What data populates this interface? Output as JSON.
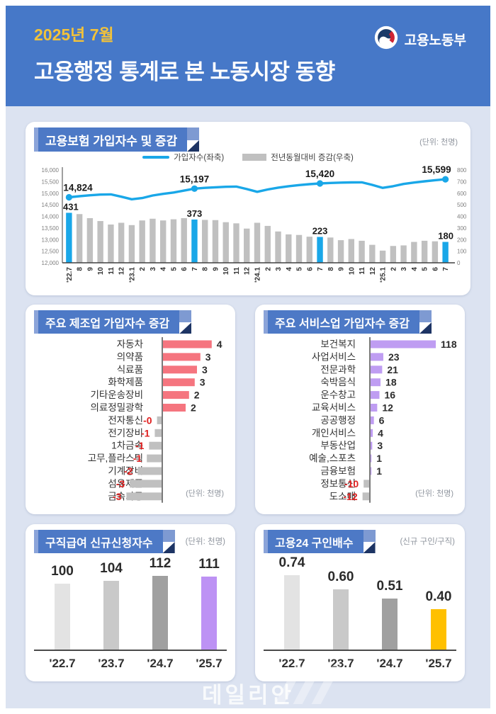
{
  "header": {
    "period": "2025년 7월",
    "title": "고용행정 통계로 본 노동시장 동향",
    "ministry": "고용노동부",
    "bg_color": "#4678c8",
    "period_color": "#f2c23a"
  },
  "watermark": {
    "text": "데일리안"
  },
  "colors": {
    "highlight_blue": "#19a7e8",
    "bar_gray": "#c0c0c0",
    "manufacturing_positive": "#f5757f",
    "services_positive": "#bf9df2",
    "negative_label_red": "#e02020",
    "claims_final_purple": "#bd92f4",
    "ratio_final_yellow": "#ffc000"
  },
  "chart_data": [
    {
      "id": "insured",
      "type": "combo",
      "title": "고용보험 가입자수 및 증감",
      "unit": "(단위: 천명)",
      "x": [
        "'22.7",
        "8",
        "9",
        "10",
        "11",
        "12",
        "'23.1",
        "2",
        "3",
        "4",
        "5",
        "6",
        "7",
        "8",
        "9",
        "10",
        "11",
        "12",
        "'24.1",
        "2",
        "3",
        "4",
        "5",
        "6",
        "7",
        "8",
        "9",
        "10",
        "11",
        "12",
        "'25.1",
        "2",
        "3",
        "4",
        "5",
        "6",
        "7"
      ],
      "left_axis": {
        "min": 12000,
        "max": 16000,
        "ticks": [
          "16,000",
          "15,500",
          "15,000",
          "14,500",
          "14,000",
          "13,500",
          "13,000",
          "12,500",
          "12,000"
        ]
      },
      "right_axis": {
        "min": 0,
        "max": 800,
        "ticks": [
          "800",
          "700",
          "600",
          "500",
          "400",
          "300",
          "200",
          "100",
          "0"
        ]
      },
      "series": [
        {
          "name": "가입자수(좌축)",
          "type": "line",
          "axis": "left",
          "color": "#19a7e8",
          "values": [
            14824,
            14870,
            14910,
            14940,
            14950,
            14850,
            14740,
            14790,
            14900,
            14970,
            15030,
            15110,
            15197,
            15230,
            15255,
            15275,
            15285,
            15180,
            15060,
            15160,
            15240,
            15300,
            15350,
            15390,
            15420,
            15440,
            15455,
            15465,
            15470,
            15360,
            15230,
            15300,
            15400,
            15460,
            15510,
            15560,
            15599
          ],
          "labeled_points": [
            {
              "index": 0,
              "label": "14,824"
            },
            {
              "index": 12,
              "label": "15,197"
            },
            {
              "index": 24,
              "label": "15,420"
            },
            {
              "index": 36,
              "label": "15,599"
            }
          ]
        },
        {
          "name": "전년동월대비 증감(우축)",
          "type": "bar",
          "axis": "right",
          "color": "#c0c0c0",
          "highlight_color": "#19a7e8",
          "highlight_indices": [
            0,
            12,
            24,
            36
          ],
          "values": [
            431,
            420,
            385,
            360,
            330,
            345,
            325,
            365,
            380,
            365,
            375,
            385,
            373,
            370,
            368,
            350,
            340,
            295,
            345,
            318,
            270,
            245,
            240,
            225,
            223,
            218,
            195,
            205,
            190,
            155,
            105,
            145,
            150,
            180,
            190,
            185,
            180
          ],
          "labeled_points": [
            {
              "index": 0,
              "label": "431"
            },
            {
              "index": 12,
              "label": "373"
            },
            {
              "index": 24,
              "label": "223"
            },
            {
              "index": 36,
              "label": "180"
            }
          ]
        }
      ]
    },
    {
      "id": "manufacturing",
      "type": "bar-horizontal",
      "title": "주요 제조업 가입자수 증감",
      "unit": "(단위: 천명)",
      "categories": [
        "자동차",
        "의약품",
        "식료품",
        "화학제품",
        "기타운송장비",
        "의료정밀광학",
        "전자통신",
        "전기장비",
        "1차금속",
        "고무,플라스틱",
        "기계장비",
        "섬유제품",
        "금속가공"
      ],
      "labels": [
        "4",
        "3",
        "3",
        "3",
        "2",
        "2",
        "-0",
        "-1",
        "-1",
        "-1",
        "-2",
        "-3",
        "-3"
      ],
      "values": [
        4.3,
        3.3,
        3.0,
        2.8,
        2.3,
        2.0,
        -0.4,
        -0.6,
        -1.1,
        -1.3,
        -2.1,
        -2.8,
        -3.1
      ],
      "positive_color": "#f5757f",
      "negative_color": "#c0c0c0",
      "negative_label_color": "#e02020"
    },
    {
      "id": "services",
      "type": "bar-horizontal",
      "title": "주요 서비스업 가입자수 증감",
      "unit": "(단위: 천명)",
      "categories": [
        "보건복지",
        "사업서비스",
        "전문과학",
        "숙박음식",
        "운수창고",
        "교육서비스",
        "공공행정",
        "개인서비스",
        "부동산업",
        "예술,스포츠",
        "금융보험",
        "정보통신",
        "도소매"
      ],
      "labels": [
        "118",
        "23",
        "21",
        "18",
        "16",
        "12",
        "6",
        "4",
        "3",
        "1",
        "1",
        "-10",
        "-12"
      ],
      "values": [
        118,
        23,
        21,
        18,
        16,
        12,
        6,
        4,
        3,
        1,
        1,
        -10,
        -12
      ],
      "positive_color": "#bf9df2",
      "negative_color": "#c0c0c0",
      "negative_label_color": "#e02020"
    },
    {
      "id": "claims",
      "type": "bar-vertical",
      "title": "구직급여 신규신청자수",
      "unit": "(단위: 천명)",
      "categories": [
        "'22.7",
        "'23.7",
        "'24.7",
        "'25.7"
      ],
      "labels": [
        "100",
        "104",
        "112",
        "111"
      ],
      "values": [
        100,
        104,
        112,
        111
      ],
      "colors": [
        "#e3e3e3",
        "#c9c9c9",
        "#a0a0a0",
        "#bd92f4"
      ]
    },
    {
      "id": "ratio",
      "type": "bar-vertical",
      "title": "고용24 구인배수",
      "unit": "(신규 구인/구직)",
      "categories": [
        "'22.7",
        "'23.7",
        "'24.7",
        "'25.7"
      ],
      "labels": [
        "0.74",
        "0.60",
        "0.51",
        "0.40"
      ],
      "values": [
        0.74,
        0.6,
        0.51,
        0.4
      ],
      "colors": [
        "#e3e3e3",
        "#c9c9c9",
        "#a0a0a0",
        "#ffc000"
      ]
    }
  ]
}
